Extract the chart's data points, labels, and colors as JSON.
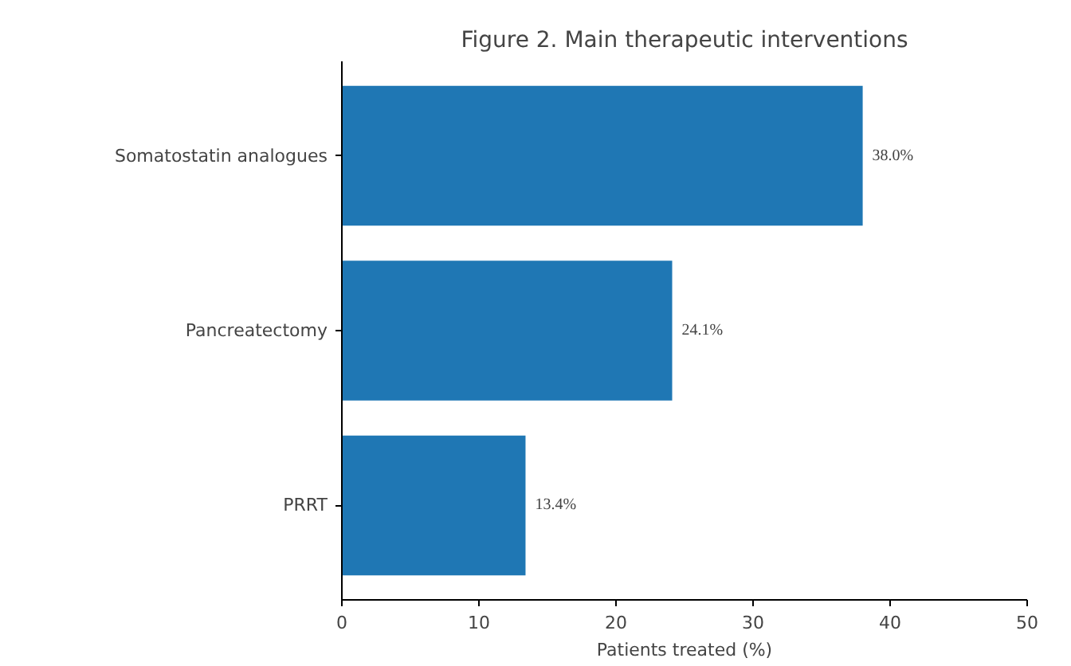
{
  "chart_data": {
    "type": "bar",
    "orientation": "horizontal",
    "title": "Figure 2. Main therapeutic interventions",
    "xlabel": "Patients treated (%)",
    "categories": [
      "Somatostatin analogues",
      "Pancreatectomy",
      "PRRT"
    ],
    "values": [
      38.0,
      24.1,
      13.4
    ],
    "value_labels": [
      "38.0%",
      "24.1%",
      "13.4%"
    ],
    "color": "#1f77b4",
    "xlim": [
      0,
      50
    ],
    "xticks": [
      0,
      10,
      20,
      30,
      40,
      50
    ],
    "grid": false
  }
}
